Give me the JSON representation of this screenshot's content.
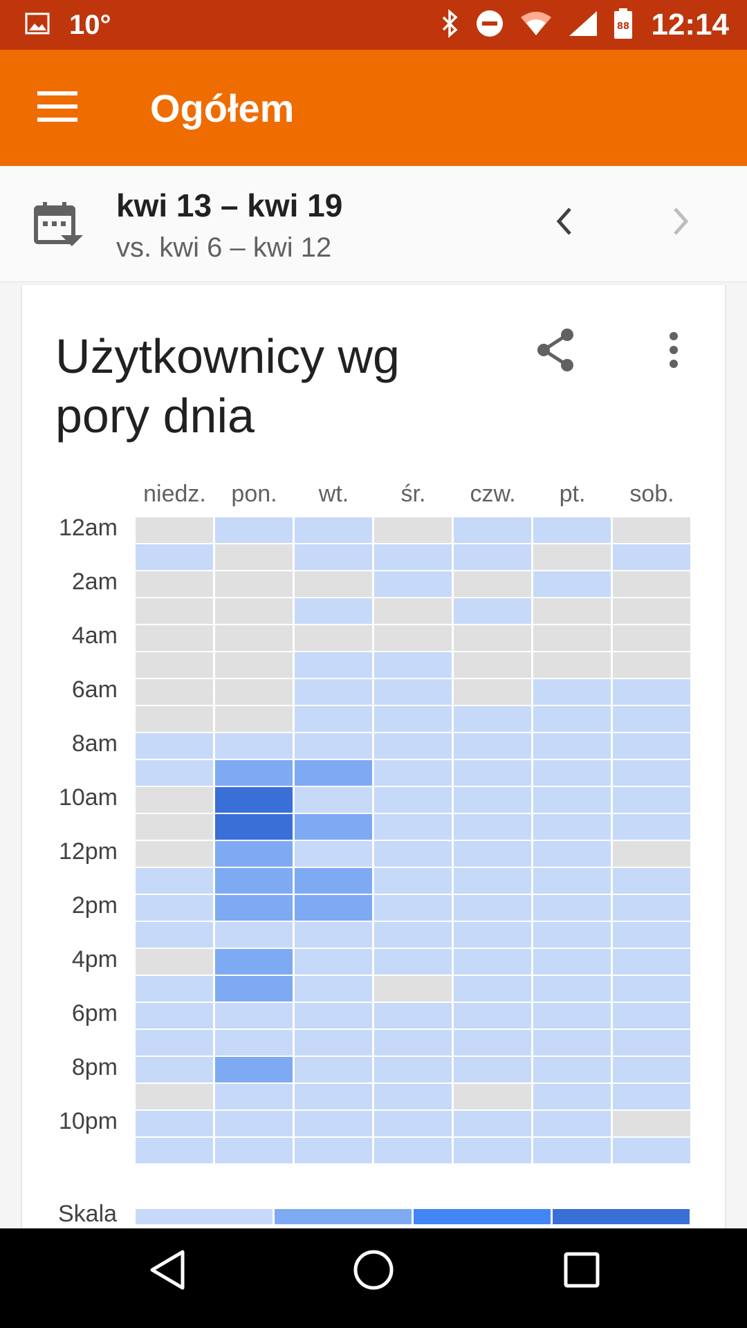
{
  "status_bar": {
    "temperature": "10°",
    "time": "12:14",
    "battery_level": "88",
    "icons": [
      "image-icon",
      "bluetooth-icon",
      "dnd-icon",
      "wifi-icon",
      "signal-icon",
      "battery-icon"
    ]
  },
  "app_bar": {
    "title": "Ogółem",
    "color": "#ef6c00",
    "status_color": "#bf360c"
  },
  "date_range": {
    "current": "kwi 13 – kwi 19",
    "compare": "vs. kwi 6 – kwi 12"
  },
  "card": {
    "title": "Użytkownicy wg pory dnia"
  },
  "chart_data": {
    "type": "heatmap",
    "title": "Użytkownicy wg pory dnia",
    "x_labels": [
      "niedz.",
      "pon.",
      "wt.",
      "śr.",
      "czw.",
      "pt.",
      "sob."
    ],
    "y_labels": [
      "12am",
      "2am",
      "4am",
      "6am",
      "8am",
      "10am",
      "12pm",
      "2pm",
      "4pm",
      "6pm",
      "8pm",
      "10pm"
    ],
    "hours": [
      "12am",
      "1am",
      "2am",
      "3am",
      "4am",
      "5am",
      "6am",
      "7am",
      "8am",
      "9am",
      "10am",
      "11am",
      "12pm",
      "1pm",
      "2pm",
      "3pm",
      "4pm",
      "5pm",
      "6pm",
      "7pm",
      "8pm",
      "9pm",
      "10pm",
      "11pm"
    ],
    "levels": [
      [
        0,
        1,
        1,
        0,
        1,
        1,
        0
      ],
      [
        1,
        0,
        1,
        1,
        1,
        0,
        1
      ],
      [
        0,
        0,
        0,
        1,
        0,
        1,
        0
      ],
      [
        0,
        0,
        1,
        0,
        1,
        0,
        0
      ],
      [
        0,
        0,
        0,
        0,
        0,
        0,
        0
      ],
      [
        0,
        0,
        1,
        1,
        0,
        0,
        0
      ],
      [
        0,
        0,
        1,
        1,
        0,
        1,
        1
      ],
      [
        0,
        0,
        1,
        1,
        1,
        1,
        1
      ],
      [
        1,
        1,
        1,
        1,
        1,
        1,
        1
      ],
      [
        1,
        2,
        2,
        1,
        1,
        1,
        1
      ],
      [
        0,
        3,
        1,
        1,
        1,
        1,
        1
      ],
      [
        0,
        3,
        2,
        1,
        1,
        1,
        1
      ],
      [
        0,
        2,
        1,
        1,
        1,
        1,
        0
      ],
      [
        1,
        2,
        2,
        1,
        1,
        1,
        1
      ],
      [
        1,
        2,
        2,
        1,
        1,
        1,
        1
      ],
      [
        1,
        1,
        1,
        1,
        1,
        1,
        1
      ],
      [
        0,
        2,
        1,
        1,
        1,
        1,
        1
      ],
      [
        1,
        2,
        1,
        0,
        1,
        1,
        1
      ],
      [
        1,
        1,
        1,
        1,
        1,
        1,
        1
      ],
      [
        1,
        1,
        1,
        1,
        1,
        1,
        1
      ],
      [
        1,
        2,
        1,
        1,
        1,
        1,
        1
      ],
      [
        0,
        1,
        1,
        1,
        0,
        1,
        1
      ],
      [
        1,
        1,
        1,
        1,
        1,
        1,
        0
      ],
      [
        1,
        1,
        1,
        1,
        1,
        1,
        1
      ]
    ],
    "level_colors": [
      "#e0e0e0",
      "#c6d9f9",
      "#7eaaf4",
      "#3a6fd8"
    ],
    "scale_label": "Skala",
    "scale_colors": [
      "#c6d9f9",
      "#7eaaf4",
      "#4285f4",
      "#3a6fd8"
    ]
  }
}
